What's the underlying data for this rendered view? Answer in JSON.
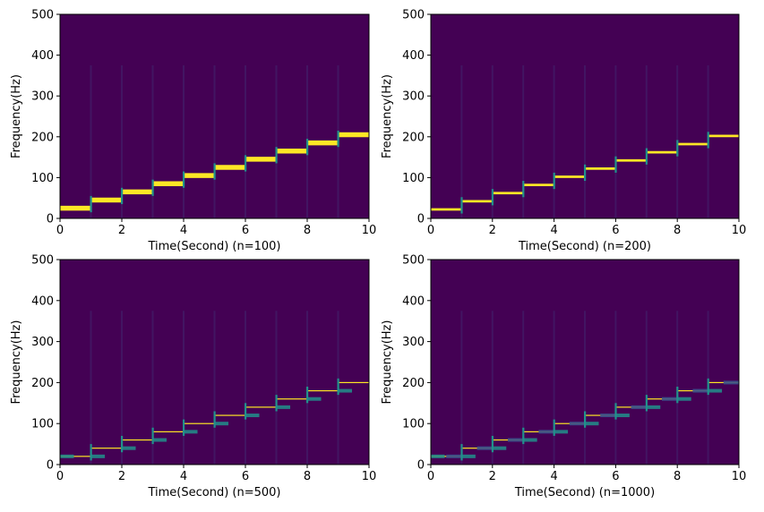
{
  "chart_data": [
    {
      "type": "heatmap",
      "subtype": "spectrogram",
      "xlabel": "Time(Second) (n=100)",
      "ylabel": "Frequency(Hz)",
      "xlim": [
        0,
        10
      ],
      "ylim": [
        0,
        500
      ],
      "xticks": [
        "0",
        "2",
        "4",
        "6",
        "8",
        "10"
      ],
      "yticks": [
        "0",
        "100",
        "200",
        "300",
        "400",
        "500"
      ],
      "colormap": "viridis",
      "background_color": "#440154",
      "segment_times": [
        [
          0,
          1
        ],
        [
          1,
          2
        ],
        [
          2,
          3
        ],
        [
          3,
          4
        ],
        [
          4,
          5
        ],
        [
          5,
          6
        ],
        [
          6,
          7
        ],
        [
          7,
          8
        ],
        [
          8,
          9
        ],
        [
          9,
          10
        ]
      ],
      "segment_frequencies": [
        25,
        45,
        65,
        85,
        105,
        125,
        145,
        165,
        185,
        205
      ],
      "band_halfwidth": 6,
      "grid": false
    },
    {
      "type": "heatmap",
      "subtype": "spectrogram",
      "xlabel": "Time(Second) (n=200)",
      "ylabel": "Frequency(Hz)",
      "xlim": [
        0,
        10
      ],
      "ylim": [
        0,
        500
      ],
      "xticks": [
        "0",
        "2",
        "4",
        "6",
        "8",
        "10"
      ],
      "yticks": [
        "0",
        "100",
        "200",
        "300",
        "400",
        "500"
      ],
      "colormap": "viridis",
      "background_color": "#440154",
      "segment_times": [
        [
          0,
          1
        ],
        [
          1,
          2
        ],
        [
          2,
          3
        ],
        [
          3,
          4
        ],
        [
          4,
          5
        ],
        [
          5,
          6
        ],
        [
          6,
          7
        ],
        [
          7,
          8
        ],
        [
          8,
          9
        ],
        [
          9,
          10
        ]
      ],
      "segment_frequencies": [
        22,
        42,
        62,
        82,
        102,
        122,
        142,
        162,
        182,
        202
      ],
      "band_halfwidth": 3,
      "grid": false
    },
    {
      "type": "heatmap",
      "subtype": "spectrogram",
      "xlabel": "Time(Second) (n=500)",
      "ylabel": "Frequency(Hz)",
      "xlim": [
        0,
        10
      ],
      "ylim": [
        0,
        500
      ],
      "xticks": [
        "0",
        "2",
        "4",
        "6",
        "8",
        "10"
      ],
      "yticks": [
        "0",
        "100",
        "200",
        "300",
        "400",
        "500"
      ],
      "colormap": "viridis",
      "background_color": "#440154",
      "segment_times": [
        [
          0,
          1
        ],
        [
          1,
          2
        ],
        [
          2,
          3
        ],
        [
          3,
          4
        ],
        [
          4,
          5
        ],
        [
          5,
          6
        ],
        [
          6,
          7
        ],
        [
          7,
          8
        ],
        [
          8,
          9
        ],
        [
          9,
          10
        ]
      ],
      "segment_frequencies": [
        20,
        40,
        60,
        80,
        100,
        120,
        140,
        160,
        180,
        200
      ],
      "band_halfwidth": 1,
      "grid": false
    },
    {
      "type": "heatmap",
      "subtype": "spectrogram",
      "xlabel": "Time(Second) (n=1000)",
      "ylabel": "Frequency(Hz)",
      "xlim": [
        0,
        10
      ],
      "ylim": [
        0,
        500
      ],
      "xticks": [
        "0",
        "2",
        "4",
        "6",
        "8",
        "10"
      ],
      "yticks": [
        "0",
        "100",
        "200",
        "300",
        "400",
        "500"
      ],
      "colormap": "viridis",
      "background_color": "#440154",
      "segment_times": [
        [
          0,
          1
        ],
        [
          1,
          2
        ],
        [
          2,
          3
        ],
        [
          3,
          4
        ],
        [
          4,
          5
        ],
        [
          5,
          6
        ],
        [
          6,
          7
        ],
        [
          7,
          8
        ],
        [
          8,
          9
        ],
        [
          9,
          10
        ]
      ],
      "segment_frequencies": [
        20,
        40,
        60,
        80,
        100,
        120,
        140,
        160,
        180,
        200
      ],
      "band_halfwidth": 1,
      "grid": false
    }
  ],
  "colors": {
    "peak": "#fde725",
    "transition": "#21918c",
    "mid": "#3b528b",
    "background": "#440154"
  }
}
